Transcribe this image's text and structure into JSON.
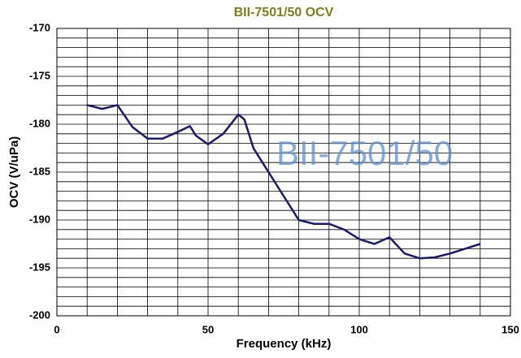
{
  "chart_data": {
    "type": "line",
    "title": "BII-7501/50 OCV",
    "watermark": "BII-7501/50",
    "xlabel": "Frequency (kHz)",
    "ylabel": "OCV (V/uPa)",
    "x": [
      10,
      15,
      20,
      25,
      30,
      35,
      40,
      44,
      46,
      50,
      55,
      60,
      62,
      65,
      70,
      75,
      80,
      85,
      90,
      95,
      100,
      105,
      110,
      115,
      120,
      125,
      130,
      135,
      140
    ],
    "values": [
      -178,
      -178.4,
      -178,
      -180.3,
      -181.5,
      -181.5,
      -180.8,
      -180.2,
      -181.2,
      -182.1,
      -181,
      -179,
      -179.5,
      -182.5,
      -185,
      -187.5,
      -190,
      -190.4,
      -190.4,
      -191,
      -192,
      -192.5,
      -191.8,
      -193.5,
      -194,
      -193.9,
      -193.5,
      -193,
      -192.5
    ],
    "color": "#1a1a6e",
    "xlim": [
      0,
      150
    ],
    "xticks": [
      0,
      50,
      100,
      150
    ],
    "ylim": [
      -200,
      -170
    ],
    "yticks": [
      -200,
      -195,
      -190,
      -185,
      -180,
      -175,
      -170
    ],
    "x_grid": [
      0,
      10,
      20,
      30,
      40,
      50,
      60,
      70,
      80,
      90,
      100,
      110,
      120,
      130,
      140,
      150
    ],
    "y_grid": [
      -200,
      -199,
      -198,
      -197,
      -196,
      -195,
      -194,
      -193,
      -192,
      -191,
      -190,
      -189,
      -188,
      -187,
      -186,
      -185,
      -184,
      -183,
      -182,
      -181,
      -180,
      -179,
      -178,
      -177,
      -176,
      -175,
      -174,
      -173,
      -172,
      -171,
      -170
    ]
  }
}
